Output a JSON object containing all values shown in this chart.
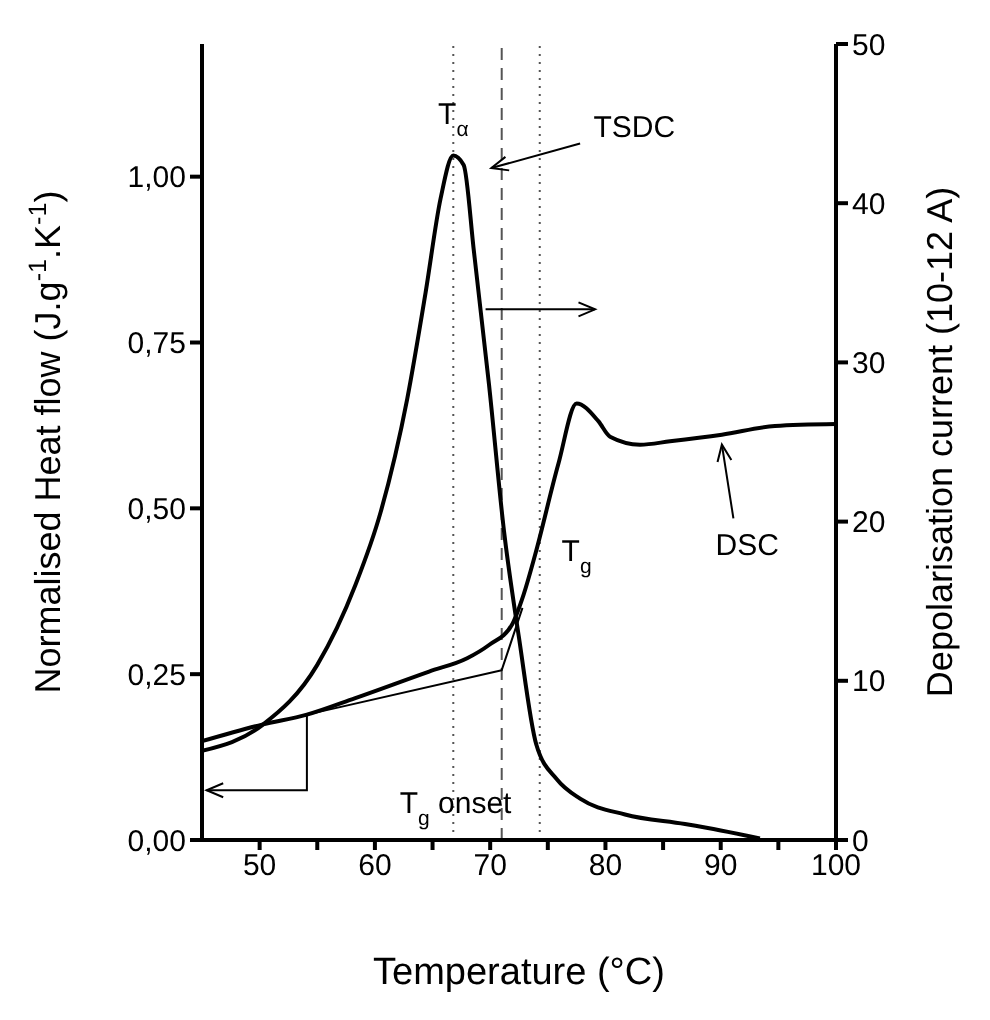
{
  "chart_data": {
    "type": "line",
    "xlabel": "Temperature (°C)",
    "ylabel": "Normalised Heat flow (J.g$^{-1}$.K$^{-1}$)",
    "y2label": "Depolarisation current  (10-12  A)",
    "xlim": [
      45,
      100
    ],
    "xticks": [
      50,
      {
        "value": 55,
        "label": null
      },
      60,
      {
        "value": 65,
        "label": null
      },
      70,
      {
        "value": 75,
        "label": null
      },
      80,
      {
        "value": 85,
        "label": null
      },
      90,
      {
        "value": 95,
        "label": null
      },
      100
    ],
    "ylim": [
      0,
      1.2
    ],
    "yticks": [
      {
        "value": 0,
        "label": "0,00"
      },
      {
        "value": 0.25,
        "label": "0,25"
      },
      {
        "value": 0.5,
        "label": "0,50"
      },
      {
        "value": 0.75,
        "label": "0,75"
      },
      {
        "value": 1,
        "label": "1,00"
      }
    ],
    "y2lim": [
      0,
      50
    ],
    "y2ticks": [
      0,
      10,
      20,
      30,
      40,
      50
    ],
    "marker": "none",
    "line_style": "solid",
    "series": [
      {
        "axis": "y2",
        "color": "#000000",
        "x": [
          45,
          50.2,
          55,
          58.3,
          60.5,
          62.8,
          64.4,
          65.7,
          66.8,
          67.7,
          68.6,
          69.9,
          71.2,
          72.5,
          74,
          75.8,
          77.8,
          81.7,
          86.9,
          90,
          93.4
        ],
        "values": [
          5.6,
          7.2,
          11,
          16,
          20.6,
          27.7,
          34.4,
          40.3,
          43,
          42.4,
          36.9,
          28.6,
          19.4,
          12.7,
          6,
          3.8,
          2.6,
          1.6,
          1,
          0.6,
          0.1
        ]
      },
      {
        "color": "#000000",
        "x": [
          45,
          50.2,
          54.1,
          58.3,
          64.7,
          68,
          69.9,
          71.9,
          72.9,
          73.9,
          75.9,
          77.5,
          79.4,
          80.4,
          83,
          85.6,
          90.1,
          94.7,
          100
        ],
        "values": [
          0.149,
          0.174,
          0.189,
          0.214,
          0.254,
          0.274,
          0.294,
          0.325,
          0.37,
          0.43,
          0.566,
          0.658,
          0.631,
          0.608,
          0.596,
          0.601,
          0.611,
          0.624,
          0.627
        ]
      },
      {
        "color": "#000000",
        "x": [
          54.1,
          71,
          72.8
        ],
        "values": [
          0.189,
          0.256,
          0.35
        ]
      }
    ],
    "ref_lines": [
      {
        "axis": "x",
        "value": 66.8,
        "line_style": "dotted",
        "color": "#555555"
      },
      {
        "axis": "x",
        "value": 71,
        "line_style": "dashed",
        "color": "#555555"
      },
      {
        "axis": "x",
        "value": 74.3,
        "line_style": "dotted",
        "color": "#555555"
      }
    ],
    "annotations": [
      {
        "text": "T$_{α}$",
        "x": 66.8,
        "y": 1.08
      },
      "TSDC",
      "T$_{g}$",
      "DSC",
      {
        "text": "T$_{g}$ onset",
        "x": 67,
        "y": 0.04
      }
    ]
  }
}
